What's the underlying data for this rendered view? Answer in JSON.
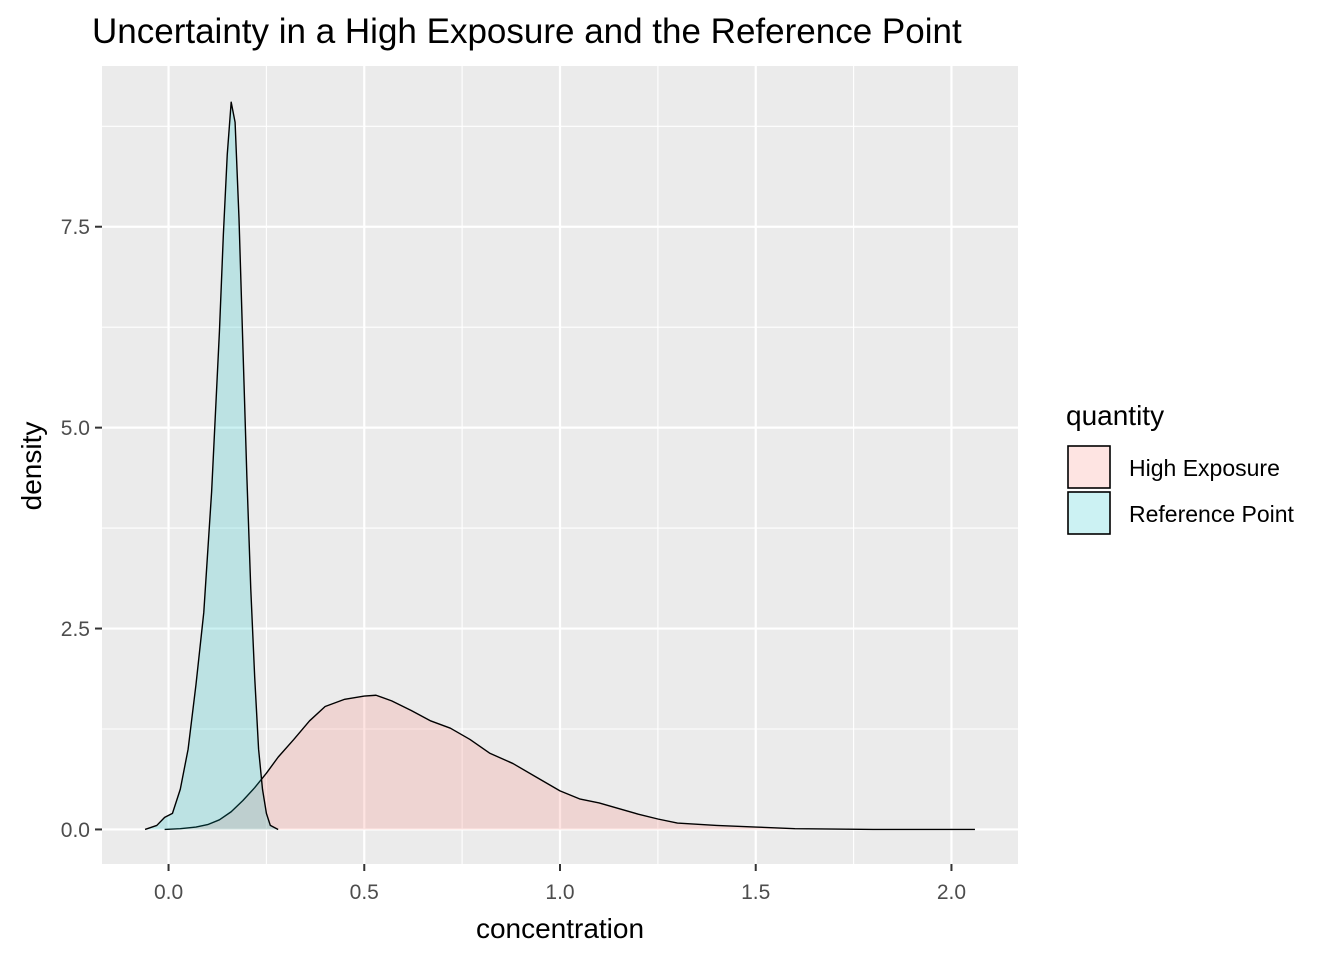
{
  "chart_data": {
    "type": "area",
    "title": "Uncertainty in a High Exposure and the Reference Point",
    "xlabel": "concentration",
    "ylabel": "density",
    "xlim": [
      -0.17,
      2.17
    ],
    "ylim": [
      -0.43,
      9.5
    ],
    "x_ticks": [
      0.0,
      0.5,
      1.0,
      1.5,
      2.0
    ],
    "x_tick_labels": [
      "0.0",
      "0.5",
      "1.0",
      "1.5",
      "2.0"
    ],
    "y_ticks": [
      0.0,
      2.5,
      5.0,
      7.5
    ],
    "y_tick_labels": [
      "0.0",
      "2.5",
      "5.0",
      "7.5"
    ],
    "grid": true,
    "panel_color": "#ebebeb",
    "legend": {
      "title": "quantity",
      "placement": "right",
      "entries": [
        {
          "label": "High Exposure",
          "color": "#f8766d"
        },
        {
          "label": "Reference Point",
          "color": "#00bfc4"
        }
      ]
    },
    "fill_alpha": 0.2,
    "series": [
      {
        "name": "High Exposure",
        "color": "#f8766d",
        "x": [
          -0.01,
          0.03,
          0.07,
          0.1,
          0.13,
          0.16,
          0.19,
          0.22,
          0.25,
          0.28,
          0.32,
          0.36,
          0.4,
          0.45,
          0.5,
          0.53,
          0.57,
          0.62,
          0.67,
          0.72,
          0.77,
          0.82,
          0.88,
          0.94,
          1.0,
          1.05,
          1.1,
          1.15,
          1.2,
          1.25,
          1.3,
          1.4,
          1.5,
          1.6,
          1.7,
          1.8,
          2.06
        ],
        "y": [
          0.0,
          0.01,
          0.03,
          0.06,
          0.12,
          0.22,
          0.36,
          0.52,
          0.7,
          0.9,
          1.12,
          1.35,
          1.53,
          1.62,
          1.66,
          1.67,
          1.6,
          1.48,
          1.35,
          1.26,
          1.12,
          0.95,
          0.82,
          0.65,
          0.48,
          0.38,
          0.33,
          0.26,
          0.19,
          0.13,
          0.08,
          0.05,
          0.03,
          0.01,
          0.005,
          0.0,
          0.0
        ]
      },
      {
        "name": "Reference Point",
        "color": "#00bfc4",
        "x": [
          -0.06,
          -0.03,
          -0.01,
          0.01,
          0.03,
          0.05,
          0.07,
          0.09,
          0.11,
          0.13,
          0.14,
          0.15,
          0.16,
          0.17,
          0.18,
          0.19,
          0.2,
          0.21,
          0.22,
          0.23,
          0.24,
          0.25,
          0.26,
          0.28
        ],
        "y": [
          0.0,
          0.05,
          0.15,
          0.2,
          0.5,
          1.0,
          1.8,
          2.7,
          4.2,
          6.2,
          7.4,
          8.4,
          9.05,
          8.8,
          7.6,
          6.0,
          4.4,
          3.0,
          1.9,
          1.0,
          0.5,
          0.2,
          0.05,
          0.0
        ]
      }
    ]
  }
}
